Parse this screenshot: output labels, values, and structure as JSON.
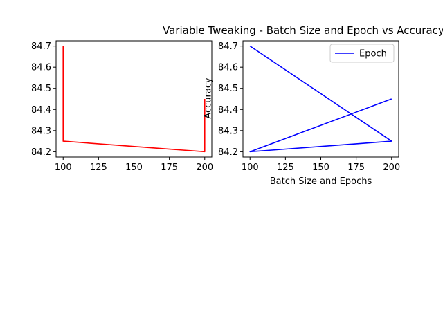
{
  "figure": {
    "title": "Variable Tweaking - Batch Size and Epoch vs Accuracy"
  },
  "chart_data": [
    {
      "type": "line",
      "title": "",
      "xlabel": "",
      "ylabel": "",
      "xlim": [
        95,
        205
      ],
      "ylim": [
        84.175,
        84.725
      ],
      "xticks": [
        100,
        125,
        150,
        175,
        200
      ],
      "yticks": [
        84.2,
        84.3,
        84.4,
        84.5,
        84.6,
        84.7
      ],
      "grid": false,
      "legend": null,
      "series": [
        {
          "color": "#ff0000",
          "x": [
            100,
            100,
            200,
            200
          ],
          "y": [
            84.7,
            84.25,
            84.2,
            84.45
          ]
        }
      ]
    },
    {
      "type": "line",
      "title": "",
      "xlabel": "Batch Size and Epochs",
      "ylabel": "Accuracy",
      "xlim": [
        95,
        205
      ],
      "ylim": [
        84.175,
        84.725
      ],
      "xticks": [
        100,
        125,
        150,
        175,
        200
      ],
      "yticks": [
        84.2,
        84.3,
        84.4,
        84.5,
        84.6,
        84.7
      ],
      "grid": false,
      "legend": "top-right",
      "series": [
        {
          "name": "Epoch",
          "color": "#0000ff",
          "x": [
            100,
            200,
            100,
            200
          ],
          "y": [
            84.7,
            84.25,
            84.2,
            84.45
          ]
        }
      ]
    }
  ]
}
